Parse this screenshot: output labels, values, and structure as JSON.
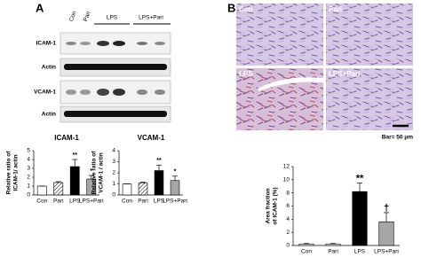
{
  "panel_a": {
    "label": "A",
    "blot_header": [
      "Con",
      "Pari",
      "LPS",
      "LPS+Pari"
    ],
    "blot_rows": [
      "ICAM-1",
      "Actin",
      "VCAM-1",
      "Actin"
    ]
  },
  "panel_b": {
    "label": "B",
    "image_labels": [
      "Con",
      "Pari",
      "LPS",
      "LPS+Pari"
    ],
    "scale_bar": "Bar= 50 μm"
  },
  "chart_data": [
    {
      "type": "bar",
      "title": "ICAM-1",
      "ylabel": [
        "Relative ratio of",
        "ICAM-1/ actin"
      ],
      "categories": [
        "Con",
        "Pari",
        "LPS",
        "LPS+Pari"
      ],
      "values": [
        1,
        1.4,
        3.2,
        1.8
      ],
      "errors": [
        0,
        0.1,
        0.8,
        0.4
      ],
      "colors": [
        "#ffffff",
        "#ffffff",
        "#000000",
        "#a6a6a6"
      ],
      "hatch": [
        false,
        true,
        false,
        false
      ],
      "markers": [
        null,
        null,
        "**",
        "*"
      ],
      "ylim": [
        0,
        5
      ],
      "yticks": [
        0,
        1,
        2,
        3,
        4,
        5
      ]
    },
    {
      "type": "bar",
      "title": "VCAM-1",
      "ylabel": [
        "Relative ratio of",
        "VCAM-1 / actin"
      ],
      "categories": [
        "Con",
        "Pari",
        "LPS",
        "LPS+Pari"
      ],
      "values": [
        1,
        1.1,
        2.2,
        1.3
      ],
      "errors": [
        0,
        0.05,
        0.5,
        0.4
      ],
      "colors": [
        "#ffffff",
        "#ffffff",
        "#000000",
        "#a6a6a6"
      ],
      "hatch": [
        false,
        true,
        false,
        false
      ],
      "markers": [
        null,
        null,
        "**",
        "*"
      ],
      "ylim": [
        0,
        4
      ],
      "yticks": [
        0,
        1,
        2,
        3,
        4
      ]
    },
    {
      "type": "bar",
      "ylabel": [
        "Area fraction",
        "of ICAM-1 (%)"
      ],
      "categories": [
        "Con",
        "Pari",
        "LPS",
        "LPS+Pari"
      ],
      "values": [
        0.2,
        0.2,
        8.2,
        3.6
      ],
      "errors": [
        0.1,
        0.1,
        1.3,
        1.4
      ],
      "colors": [
        "#ffffff",
        "#ffffff",
        "#000000",
        "#a6a6a6"
      ],
      "hatch": [
        false,
        false,
        false,
        false
      ],
      "markers": [
        null,
        null,
        "**",
        "†"
      ],
      "ylim": [
        0,
        12
      ],
      "yticks": [
        0,
        2,
        4,
        6,
        8,
        10,
        12
      ]
    }
  ]
}
